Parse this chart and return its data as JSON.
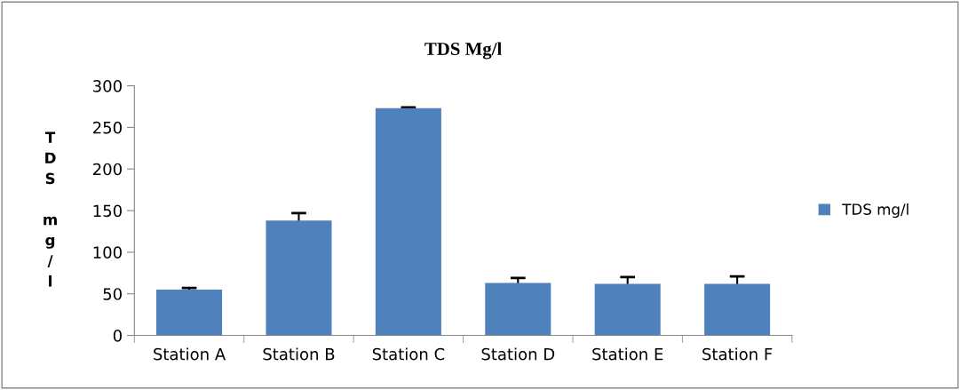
{
  "chart_data": {
    "type": "bar",
    "title": "TDS Mg/l",
    "ylabel": "TDS mg/l",
    "categories": [
      "Station A",
      "Station B",
      "Station C",
      "Station D",
      "Station E",
      "Station F"
    ],
    "series": [
      {
        "name": "TDS mg/l",
        "color": "#4f81bd",
        "values": [
          55,
          138,
          273,
          63,
          62,
          62
        ],
        "errors": [
          2,
          9,
          1,
          6,
          8,
          9
        ]
      }
    ],
    "ylim": [
      0,
      300
    ],
    "yticks": [
      0,
      50,
      100,
      150,
      200,
      250,
      300
    ],
    "grid": false,
    "legend": "right"
  }
}
